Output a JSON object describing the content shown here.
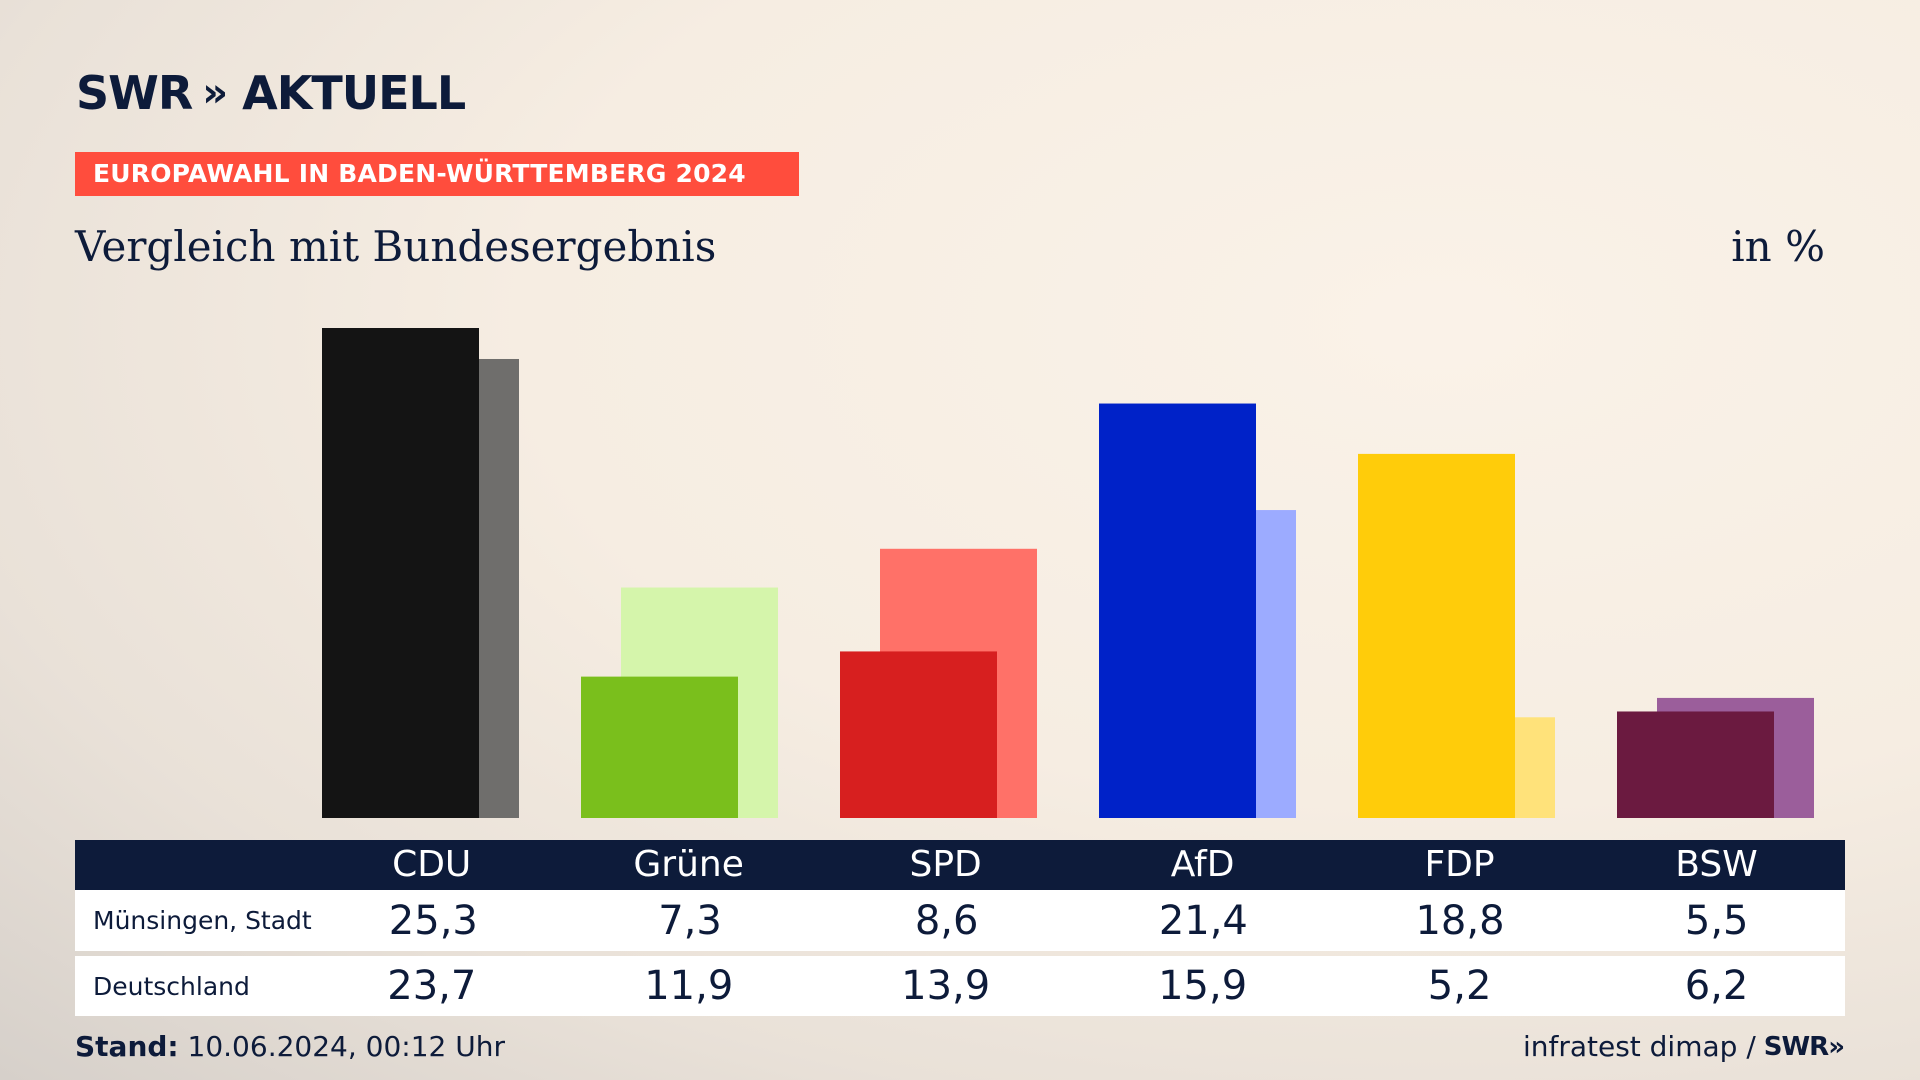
{
  "header": {
    "logo_brand": "SWR",
    "logo_chevrons": "»",
    "logo_section": "AKTUELL",
    "banner": "EUROPAWAHL IN BADEN-WÜRTTEMBERG 2024",
    "subtitle": "Vergleich mit Bundesergebnis",
    "unit": "in %"
  },
  "chart_data": {
    "type": "bar",
    "categories": [
      "CDU",
      "Grüne",
      "SPD",
      "AfD",
      "FDP",
      "BSW"
    ],
    "series": [
      {
        "name": "Münsingen, Stadt",
        "values": [
          "25,3",
          "7,3",
          "8,6",
          "21,4",
          "18,8",
          "5,5"
        ],
        "numeric": [
          25.3,
          7.3,
          8.6,
          21.4,
          18.8,
          5.5
        ]
      },
      {
        "name": "Deutschland",
        "values": [
          "23,7",
          "11,9",
          "13,9",
          "15,9",
          "5,2",
          "6,2"
        ],
        "numeric": [
          23.7,
          11.9,
          13.9,
          15.9,
          5.2,
          6.2
        ]
      }
    ],
    "colors_primary": [
      "#141414",
      "#7abf1c",
      "#d71f1f",
      "#0022c8",
      "#ffcc0a",
      "#6b1a40"
    ],
    "colors_secondary": [
      "#6f6e6c",
      "#d5f5ab",
      "#ff7168",
      "#9cabff",
      "#ffe27a",
      "#9b5e9b"
    ],
    "ylim": [
      0,
      25.3
    ]
  },
  "footer": {
    "stand_label": "Stand:",
    "stand_value": "10.06.2024, 00:12 Uhr",
    "source": "infratest dimap /",
    "source_logo": "SWR»"
  }
}
